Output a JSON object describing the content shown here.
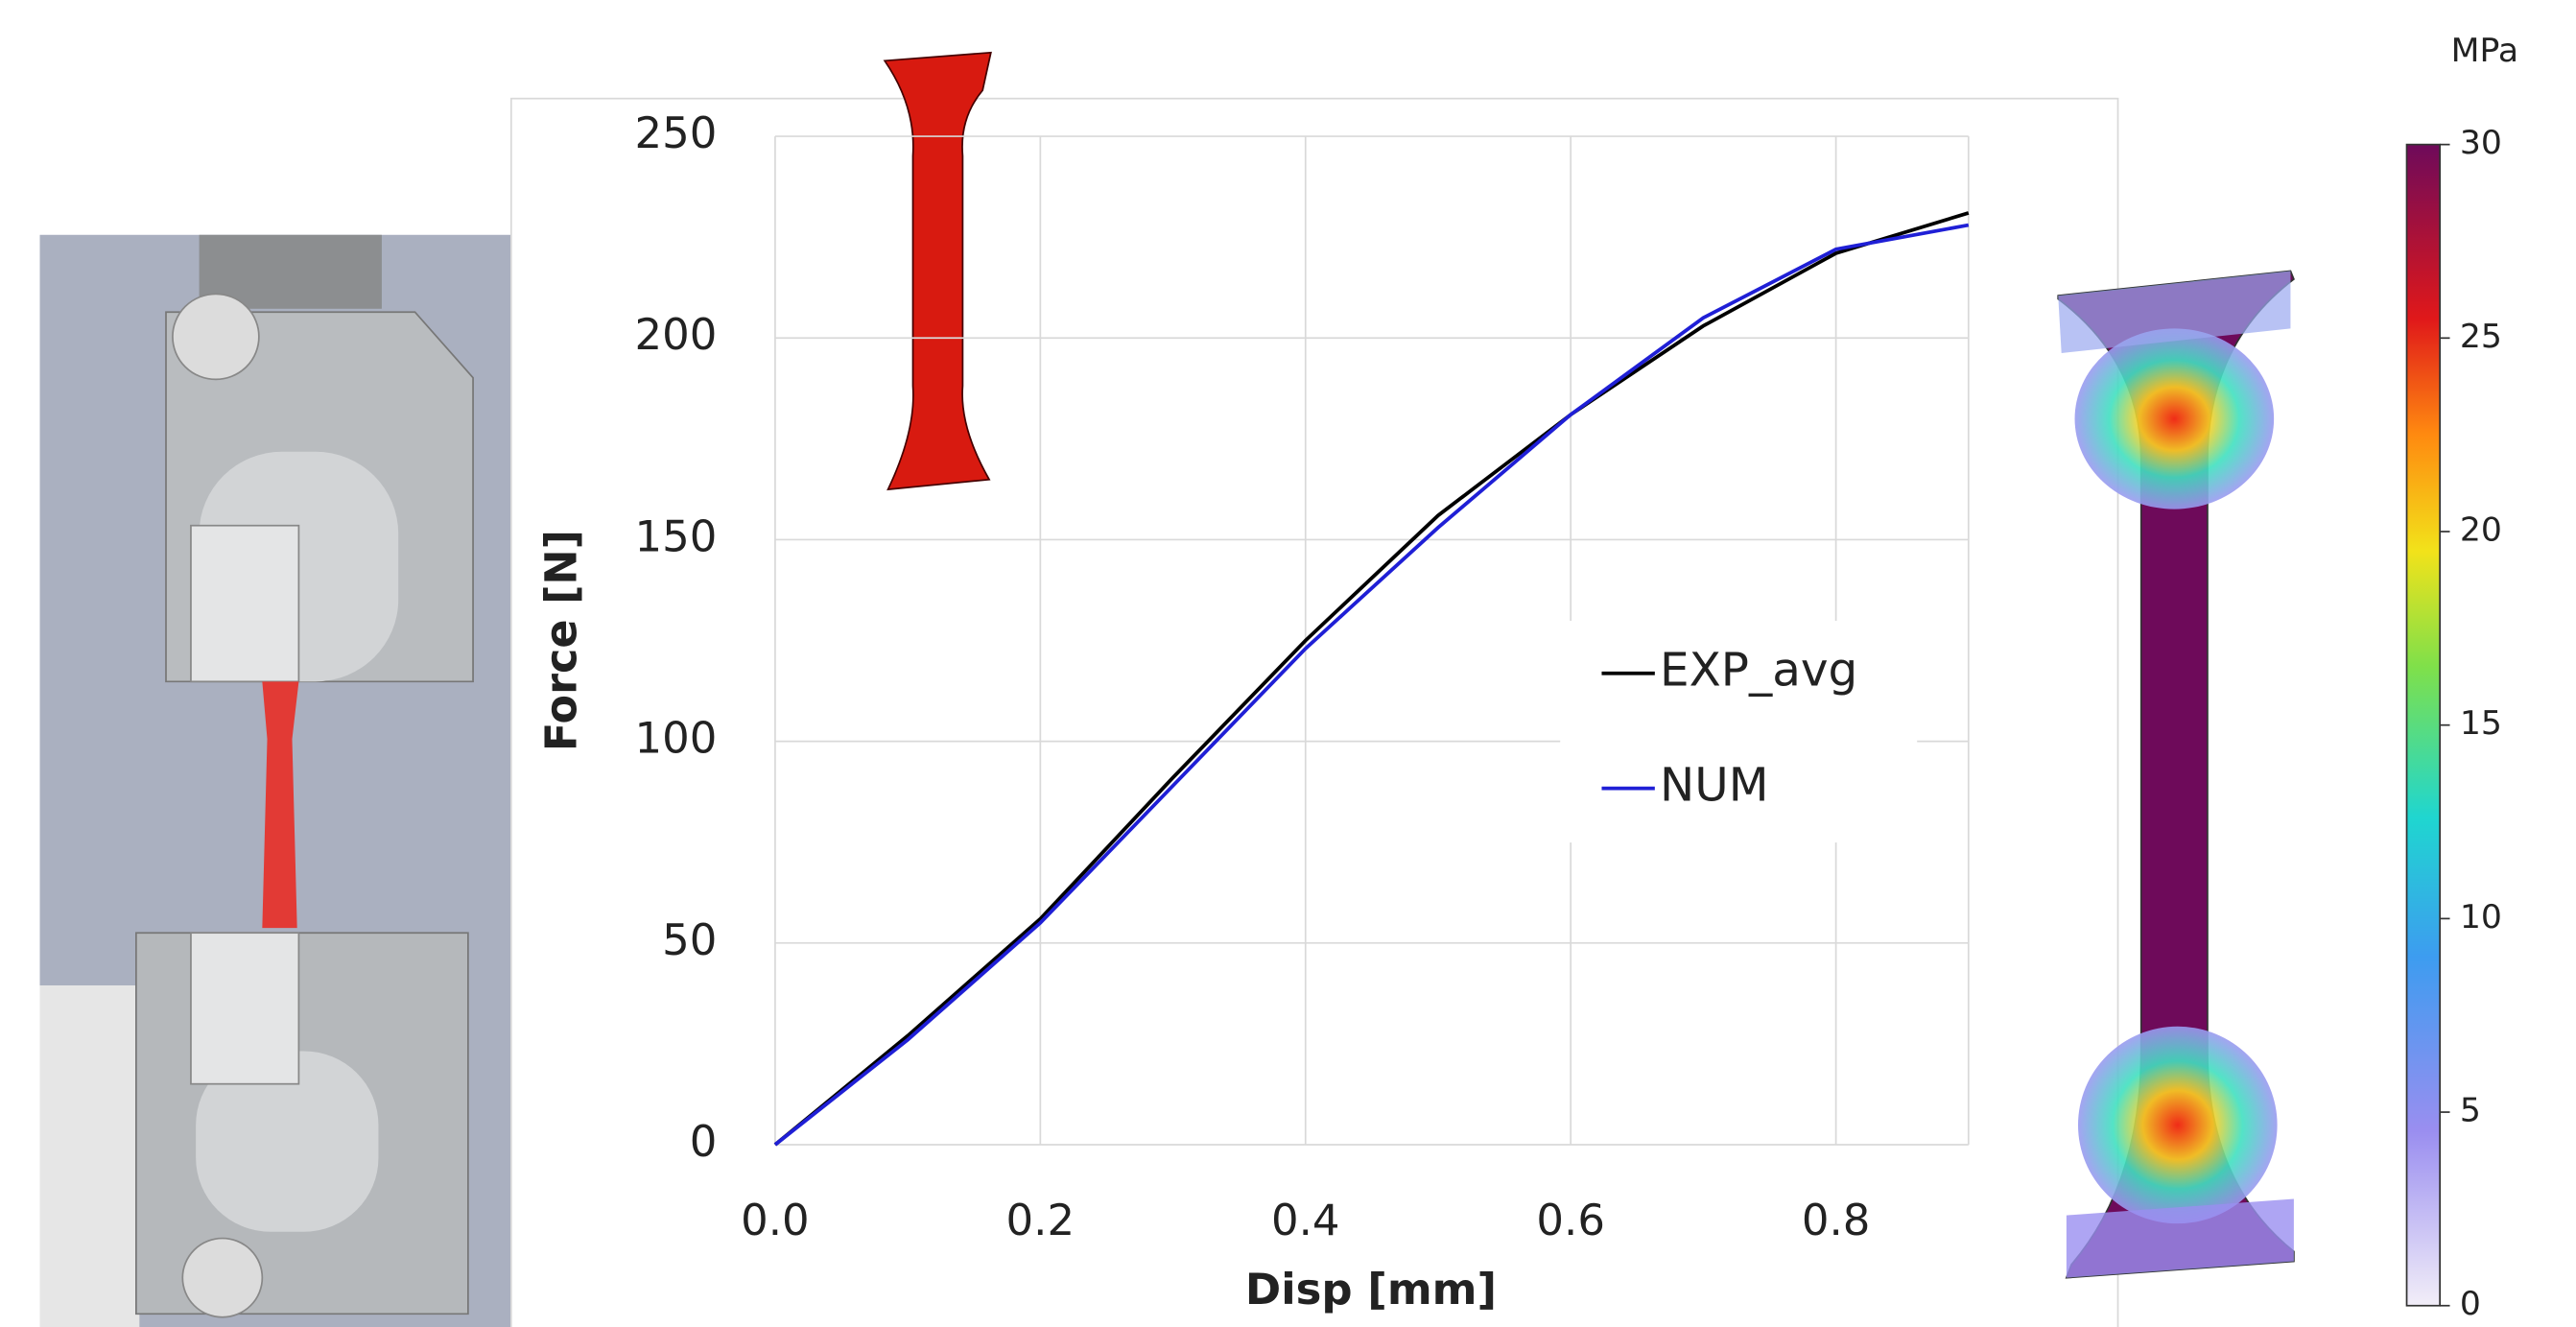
{
  "chart_data": {
    "type": "line",
    "x": [
      0,
      0.1,
      0.2,
      0.3,
      0.4,
      0.5,
      0.6,
      0.7,
      0.8,
      0.9
    ],
    "series": [
      {
        "name": "EXP_avg",
        "color": "#000000",
        "values": [
          0,
          27,
          56,
          91,
          125,
          156,
          181,
          203,
          221,
          231
        ]
      },
      {
        "name": "NUM",
        "color": "#1f1fd6",
        "values": [
          0,
          26,
          55,
          89,
          123,
          153,
          181,
          205,
          222,
          228
        ]
      }
    ],
    "x_label": "Disp [mm]",
    "y_label": "Force [N]",
    "xlim": [
      0,
      0.9
    ],
    "ylim": [
      0,
      250
    ],
    "xticks": [
      {
        "value": 0,
        "label": "0.0"
      },
      0.2,
      0.4,
      0.6,
      0.8
    ],
    "yticks": [
      0,
      50,
      100,
      150,
      200,
      250
    ],
    "grid": true
  },
  "colorbar": {
    "label": "MPa",
    "lim": [
      0,
      30
    ],
    "ticks": [
      0,
      5,
      10,
      15,
      20,
      25,
      30
    ]
  }
}
